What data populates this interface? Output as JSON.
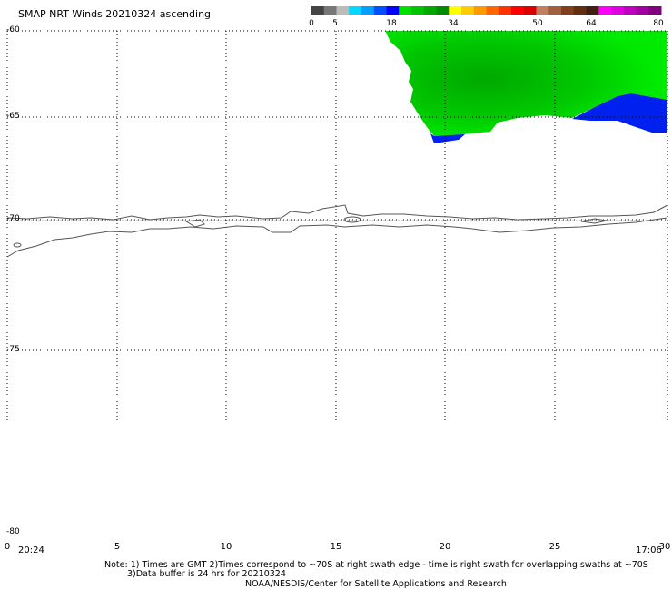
{
  "title": "SMAP NRT Winds 20210324 ascending",
  "colorbar": {
    "labels": [
      "0",
      "5",
      "18",
      "34",
      "50",
      "64",
      "80"
    ],
    "segments": [
      "#444444",
      "#777777",
      "#bbbbbb",
      "#00d8ff",
      "#00a0ff",
      "#0050ff",
      "#0000ff",
      "#00e000",
      "#00c400",
      "#00a800",
      "#008c00",
      "#ffff00",
      "#ffcc00",
      "#ff9900",
      "#ff6600",
      "#ff3300",
      "#ff0000",
      "#dd0000",
      "#c08060",
      "#a06040",
      "#804020",
      "#603010",
      "#402010",
      "#ff00ff",
      "#e000e0",
      "#c000c0",
      "#a000a0",
      "#800080"
    ]
  },
  "axes": {
    "lat_labels": [
      "-60",
      "-65",
      "-70",
      "-75",
      "-80"
    ],
    "lon_labels": [
      "0",
      "5",
      "10",
      "15",
      "20",
      "25",
      "30"
    ]
  },
  "times": {
    "left": "20:24",
    "right": "17:06"
  },
  "notes": {
    "line1": "Note: 1) Times are GMT 2)Times correspond to ~70S at right swath edge - time is right swath for overlapping swaths at ~70S",
    "line2": "3)Data buffer is 24 hrs for 20210324",
    "line3": "NOAA/NESDIS/Center for Satellite Applications and Research"
  },
  "colors": {
    "wind_green": "#00e600",
    "wind_dark_green": "#009600",
    "wind_blue": "#0020f0",
    "coast": "#555555"
  }
}
